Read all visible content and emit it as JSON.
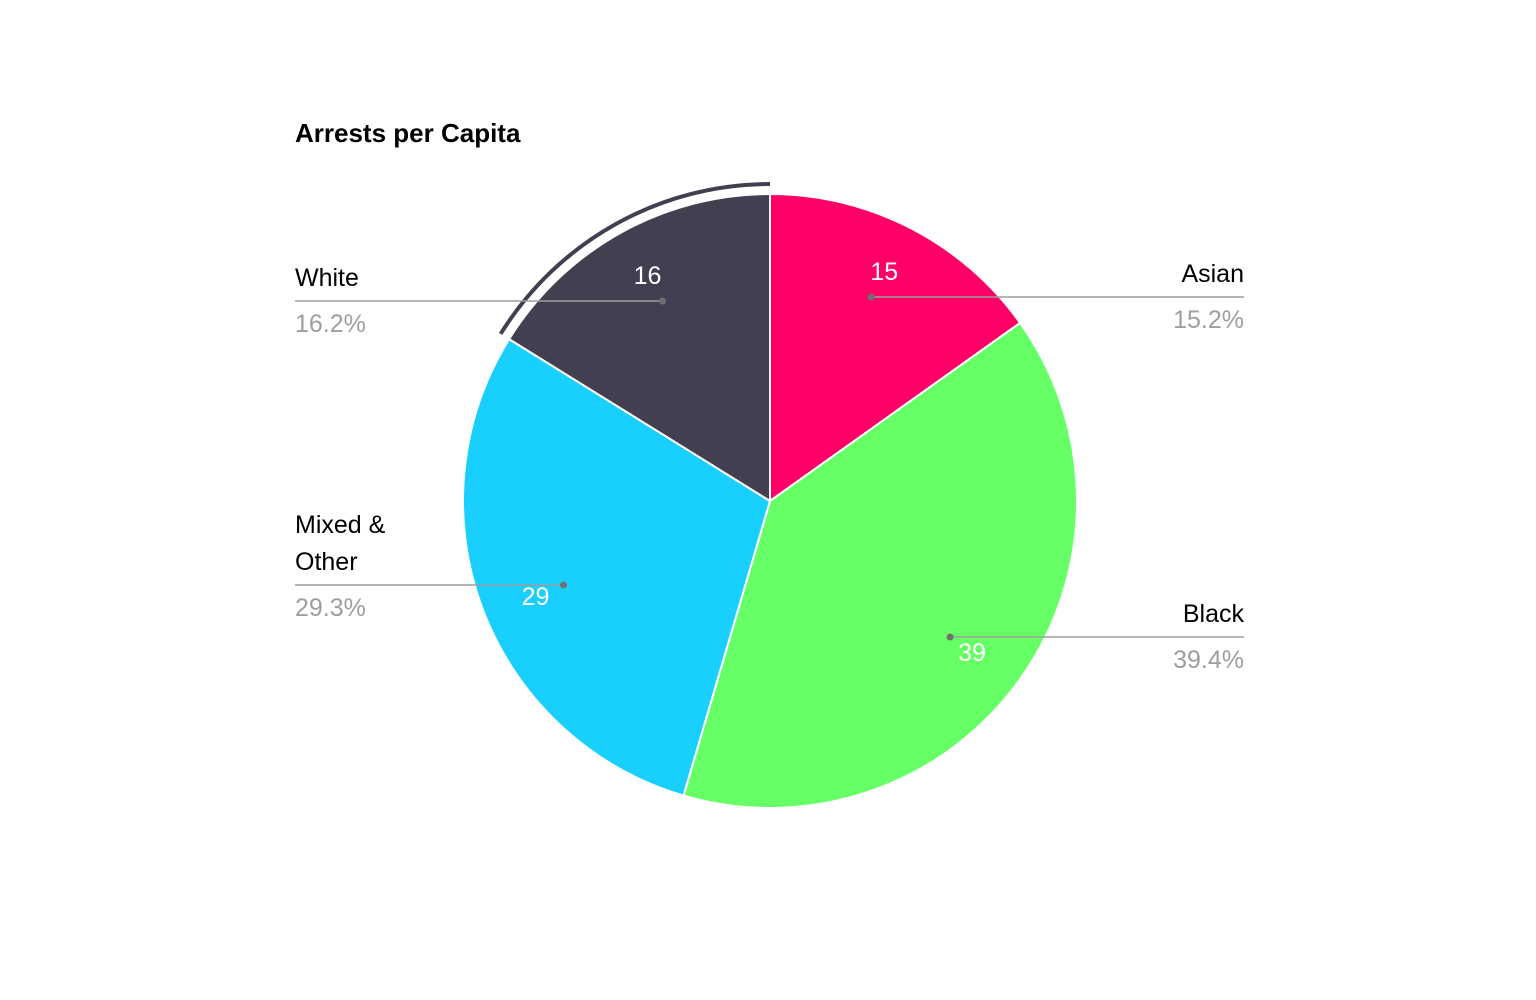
{
  "chart_data": {
    "type": "pie",
    "title": "Arrests per Capita",
    "slices": [
      {
        "label": "Asian",
        "value": 15,
        "percent": "15.2%",
        "color": "#ff0066"
      },
      {
        "label": "Black",
        "value": 39,
        "percent": "39.4%",
        "color": "#66ff66"
      },
      {
        "label": "Mixed & Other",
        "value": 29,
        "percent": "29.3%",
        "color": "#18cffd"
      },
      {
        "label": "White",
        "value": 16,
        "percent": "16.2%",
        "color": "#433f51"
      }
    ],
    "highlighted_slice": "White",
    "start_angle": "12 o'clock",
    "direction": "clockwise"
  }
}
